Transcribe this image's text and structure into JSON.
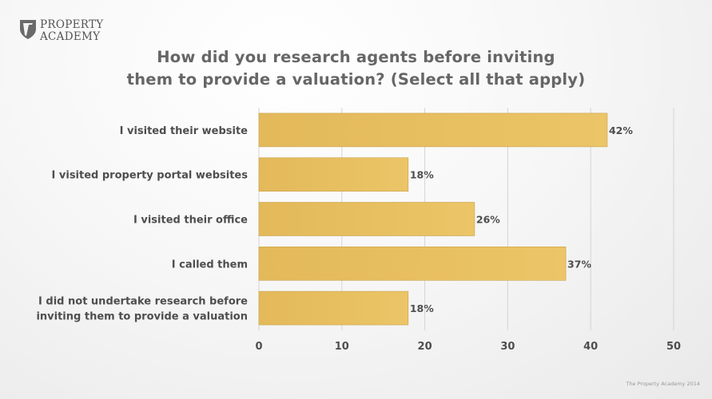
{
  "brand": {
    "line1": "PROPERTY",
    "line2": "ACADEMY"
  },
  "footer": "The Property Academy 2014",
  "colors": {
    "bar": "#e3b95a",
    "bar_light": "#ebc567",
    "bar_edge": "#c9a04a",
    "grid": "#d4d4d4",
    "text": "#4e4e4e"
  },
  "chart_data": {
    "type": "bar",
    "orientation": "horizontal",
    "title_lines": [
      "How did you research agents before inviting",
      "them to provide a valuation? (Select all that apply)"
    ],
    "categories": [
      [
        "I visited their website"
      ],
      [
        "I visited property portal websites"
      ],
      [
        "I visited their office"
      ],
      [
        "I called them"
      ],
      [
        "I did not undertake research before",
        "inviting them to provide a valuation"
      ]
    ],
    "values": [
      42,
      18,
      26,
      37,
      18
    ],
    "value_labels": [
      "42%",
      "18%",
      "26%",
      "37%",
      "18%"
    ],
    "xlim": [
      0,
      50
    ],
    "xticks": [
      "0",
      "10",
      "20",
      "30",
      "40",
      "50"
    ],
    "xlabel": "",
    "ylabel": "",
    "grid": true
  }
}
